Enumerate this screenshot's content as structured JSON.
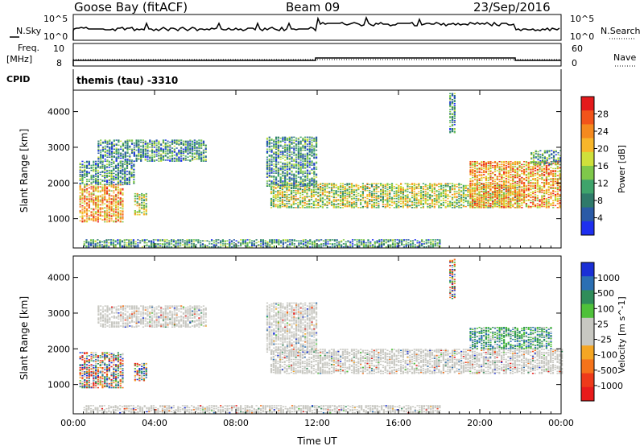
{
  "header": {
    "station": "Goose Bay (fitACF)",
    "beam": "Beam 09",
    "date": "23/Sep/2016"
  },
  "top_panels": {
    "nsky_label": "N.Sky",
    "nsky_ticks": [
      "10^5",
      "10^0"
    ],
    "nsearch_label": "N.Search",
    "nsearch_ticks": [
      "10^5",
      "10^0"
    ],
    "freq_label_1": "Freq.",
    "freq_label_2": "[MHz]",
    "freq_ticks": [
      "10",
      "8"
    ],
    "nave_label": "Nave",
    "nave_ticks": [
      "60",
      "0"
    ],
    "cpid_label": "CPID",
    "cpid_text": "themis (tau) -3310"
  },
  "chart_data": [
    {
      "type": "heatmap",
      "title": "",
      "ylabel": "Slant Range [km]",
      "xlabel": "",
      "xlim": [
        0,
        24
      ],
      "ylim": [
        180,
        4600
      ],
      "x_ticks": [
        "00:00",
        "04:00",
        "08:00",
        "12:00",
        "16:00",
        "20:00",
        "00:00"
      ],
      "y_ticks": [
        1000,
        2000,
        3000,
        4000
      ],
      "colorbar": {
        "label": "Power [dB]",
        "ticks": [
          "28",
          "24",
          "20",
          "16",
          "12",
          "8",
          "4"
        ],
        "colors": [
          "#e41a1c",
          "#f2541b",
          "#f58a1f",
          "#f7b62a",
          "#cfe03b",
          "#7fc84a",
          "#3fa46b",
          "#2f7a6a",
          "#2a5aa6",
          "#1e2ff0"
        ]
      },
      "regions": [
        {
          "t": [
            0.3,
            2.5
          ],
          "r": [
            900,
            1950
          ],
          "level": "high"
        },
        {
          "t": [
            0.3,
            3.0
          ],
          "r": [
            1950,
            2600
          ],
          "level": "low"
        },
        {
          "t": [
            1.2,
            6.5
          ],
          "r": [
            2600,
            3200
          ],
          "level": "low"
        },
        {
          "t": [
            3.0,
            3.6
          ],
          "r": [
            1100,
            1700
          ],
          "level": "mid"
        },
        {
          "t": [
            9.7,
            22.0
          ],
          "r": [
            1300,
            2000
          ],
          "level": "mid"
        },
        {
          "t": [
            9.5,
            12.0
          ],
          "r": [
            1900,
            3300
          ],
          "level": "low"
        },
        {
          "t": [
            19.5,
            24.0
          ],
          "r": [
            1300,
            2600
          ],
          "level": "high"
        },
        {
          "t": [
            22.5,
            24.0
          ],
          "r": [
            2500,
            2900
          ],
          "level": "low"
        },
        {
          "t": [
            0.5,
            18.0
          ],
          "r": [
            200,
            400
          ],
          "level": "low"
        },
        {
          "t": [
            18.5,
            18.8
          ],
          "r": [
            3400,
            4500
          ],
          "level": "low"
        }
      ]
    },
    {
      "type": "heatmap",
      "title": "",
      "ylabel": "Slant Range [km]",
      "xlabel": "Time UT",
      "xlim": [
        0,
        24
      ],
      "ylim": [
        180,
        4600
      ],
      "x_ticks": [
        "00:00",
        "04:00",
        "08:00",
        "12:00",
        "16:00",
        "20:00",
        "00:00"
      ],
      "y_ticks": [
        1000,
        2000,
        3000,
        4000
      ],
      "colorbar": {
        "label": "Velocity [m s^-1]",
        "ticks": [
          "1000",
          "500",
          "100",
          "25",
          "-25",
          "-100",
          "-500",
          "-1000"
        ],
        "colors": [
          "#1a2fd6",
          "#2b6fb3",
          "#2f8d5a",
          "#4fc13a",
          "#c8c8c2",
          "#c8c8c2",
          "#f5a623",
          "#f5731b",
          "#ee3a1a",
          "#e81b1b"
        ]
      },
      "regions": [
        {
          "t": [
            0.3,
            2.5
          ],
          "r": [
            900,
            1900
          ],
          "level": "mixed"
        },
        {
          "t": [
            3.0,
            3.6
          ],
          "r": [
            1100,
            1600
          ],
          "level": "mixed"
        },
        {
          "t": [
            1.2,
            6.5
          ],
          "r": [
            2600,
            3200
          ],
          "level": "ground"
        },
        {
          "t": [
            9.7,
            24.0
          ],
          "r": [
            1300,
            2000
          ],
          "level": "ground"
        },
        {
          "t": [
            9.5,
            12.0
          ],
          "r": [
            1900,
            3300
          ],
          "level": "ground"
        },
        {
          "t": [
            19.5,
            23.5
          ],
          "r": [
            2000,
            2600
          ],
          "level": "positive"
        },
        {
          "t": [
            0.5,
            18.0
          ],
          "r": [
            200,
            400
          ],
          "level": "ground"
        },
        {
          "t": [
            18.5,
            18.8
          ],
          "r": [
            3400,
            4500
          ],
          "level": "mixed"
        }
      ]
    }
  ]
}
